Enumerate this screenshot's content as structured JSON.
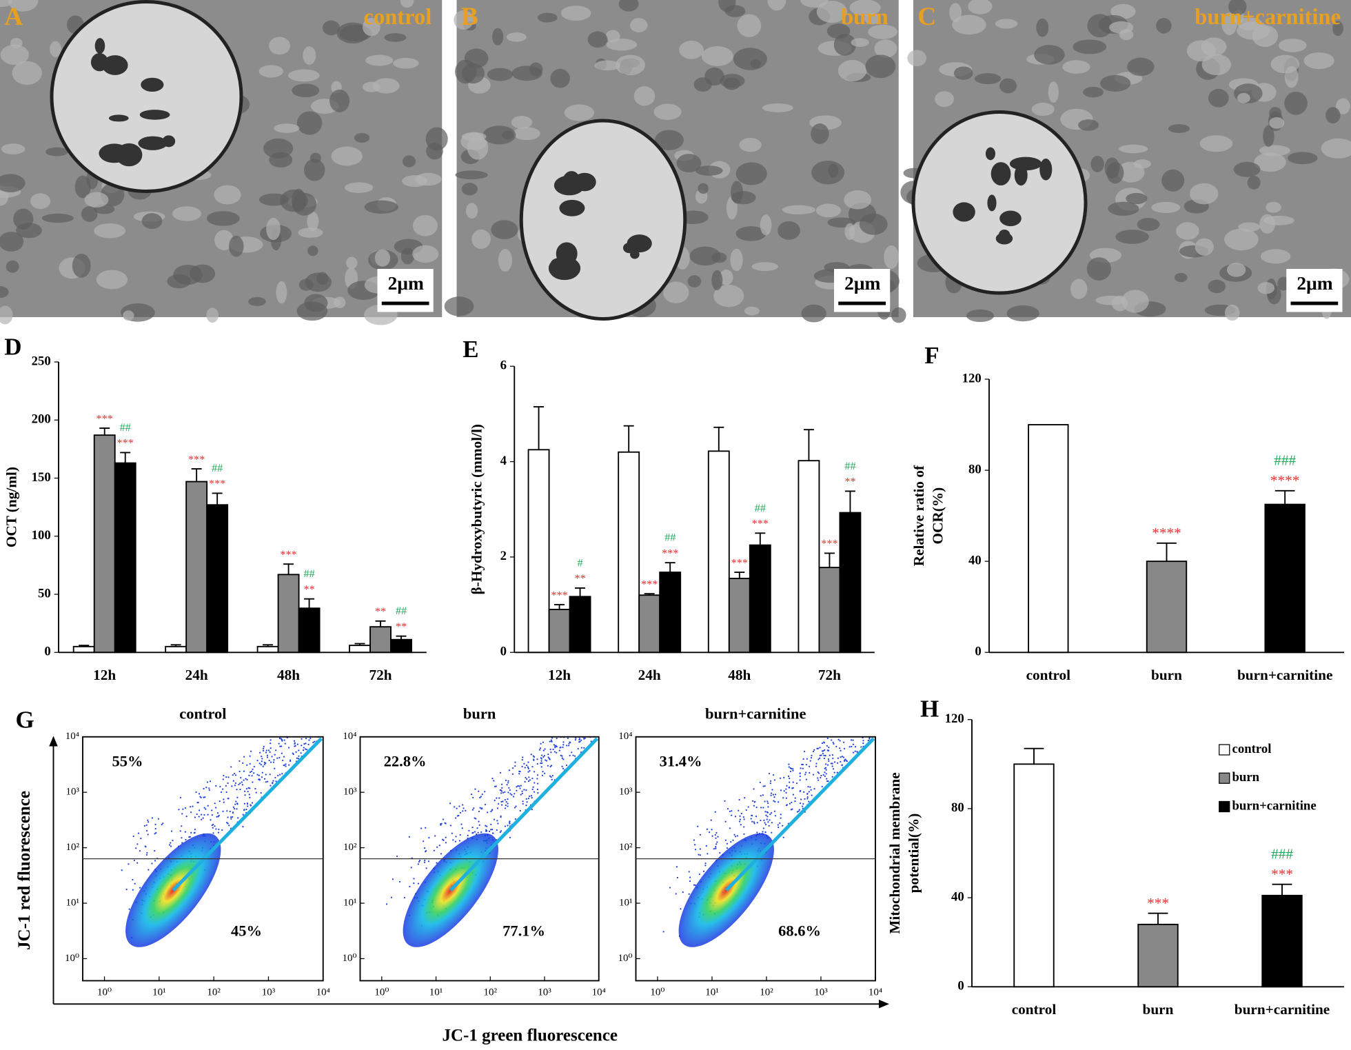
{
  "panels": [
    {
      "letter": "A",
      "label": "control",
      "scale": "2μm"
    },
    {
      "letter": "B",
      "label": "burn",
      "scale": "2μm"
    },
    {
      "letter": "C",
      "label": "burn+carnitine",
      "scale": "2μm"
    }
  ],
  "flow": {
    "letter": "G",
    "ylabel": "JC-1 red fluorescence",
    "xlabel": "JC-1 green fluorescence"
  },
  "chart_data": [
    {
      "type": "bar",
      "letter": "D",
      "ylabel": [
        "OCT (ng/ml)"
      ],
      "categories": [
        "12h",
        "24h",
        "48h",
        "72h"
      ],
      "ylim": [
        0,
        250
      ],
      "yticks": [
        0,
        50,
        100,
        150,
        200,
        250
      ],
      "sig_color": "#e8302e",
      "sig2_color": "#1ea85a",
      "series": [
        {
          "color": "#ffffff",
          "values": [
            5,
            5,
            5,
            6
          ],
          "errors": [
            1,
            1.5,
            1.5,
            1.5
          ]
        },
        {
          "color": "#888888",
          "values": [
            187,
            147,
            67,
            22
          ],
          "errors": [
            6,
            11,
            9,
            5
          ],
          "sig": [
            "***",
            "***",
            "***",
            "**"
          ]
        },
        {
          "color": "#000000",
          "values": [
            163,
            127,
            38,
            11
          ],
          "errors": [
            9,
            10,
            8,
            3
          ],
          "sig": [
            "***",
            "***",
            "**",
            "**"
          ],
          "sig2": [
            "##",
            "##",
            "##",
            "##"
          ]
        }
      ]
    },
    {
      "type": "bar",
      "letter": "E",
      "ylabel": [
        "β-Hydroxybutyric (mmol/l)"
      ],
      "categories": [
        "12h",
        "24h",
        "48h",
        "72h"
      ],
      "ylim": [
        0,
        6
      ],
      "yticks": [
        0,
        2,
        4,
        6
      ],
      "sig_color": "#e8302e",
      "sig2_color": "#1ea85a",
      "series": [
        {
          "color": "#ffffff",
          "values": [
            4.25,
            4.2,
            4.22,
            4.02
          ],
          "errors": [
            0.9,
            0.55,
            0.5,
            0.65
          ]
        },
        {
          "color": "#888888",
          "values": [
            0.9,
            1.2,
            1.55,
            1.78
          ],
          "errors": [
            0.1,
            0.03,
            0.13,
            0.3
          ],
          "sig": [
            "***",
            "***",
            "***",
            "***"
          ]
        },
        {
          "color": "#000000",
          "values": [
            1.17,
            1.68,
            2.25,
            2.93
          ],
          "errors": [
            0.18,
            0.2,
            0.25,
            0.45
          ],
          "sig": [
            "**",
            "***",
            "***",
            "**"
          ],
          "sig2": [
            "#",
            "##",
            "##",
            "##"
          ]
        }
      ]
    },
    {
      "type": "bar",
      "letter": "F",
      "ylabel": [
        "Relative ratio of",
        "OCR(%)"
      ],
      "categories": [
        "control",
        "burn",
        "burn+carnitine"
      ],
      "ylim": [
        0,
        120
      ],
      "yticks": [
        0,
        40,
        80,
        120
      ],
      "sig_color": "#e8302e",
      "sig2_color": "#1ea85a",
      "values": [
        100,
        40,
        65
      ],
      "errors": [
        null,
        8,
        6
      ],
      "colors": [
        "#ffffff",
        "#888888",
        "#000000"
      ],
      "sig": [
        null,
        "****",
        "****"
      ],
      "sig2": [
        null,
        null,
        "###"
      ]
    },
    {
      "type": "bar",
      "letter": "H",
      "ylabel": [
        "Mitochondrial membrane",
        "potential(%)"
      ],
      "categories": [
        "control",
        "burn",
        "burn+carnitine"
      ],
      "ylim": [
        0,
        120
      ],
      "yticks": [
        0,
        40,
        80,
        120
      ],
      "sig_color": "#e8302e",
      "sig2_color": "#1ea85a",
      "values": [
        100,
        28,
        41
      ],
      "errors": [
        7,
        5,
        5
      ],
      "colors": [
        "#ffffff",
        "#888888",
        "#000000"
      ],
      "sig": [
        null,
        "***",
        "***"
      ],
      "sig2": [
        null,
        null,
        "###"
      ],
      "legend": "upper right"
    },
    {
      "type": "scatter",
      "title": "control",
      "log": true,
      "xlim": [
        0.4,
        10000
      ],
      "ylim": [
        0.4,
        10000
      ],
      "xticks": [
        {
          "value": 1,
          "label": "10⁰"
        },
        {
          "value": 10,
          "label": "10¹"
        },
        {
          "value": 100,
          "label": "10²"
        },
        {
          "value": 1000,
          "label": "10³"
        },
        {
          "value": 10000,
          "label": "10⁴"
        }
      ],
      "yticks": [
        {
          "value": 1,
          "label": "10⁰"
        },
        {
          "value": 10,
          "label": "10¹"
        },
        {
          "value": 100,
          "label": "10²"
        },
        {
          "value": 1000,
          "label": "10³"
        },
        {
          "value": 10000,
          "label": "10⁴"
        }
      ],
      "annotations": [
        "55%",
        "45%"
      ]
    },
    {
      "type": "scatter",
      "title": "burn",
      "log": true,
      "xlim": [
        0.4,
        10000
      ],
      "ylim": [
        0.4,
        10000
      ],
      "xticks": [
        {
          "value": 1,
          "label": "10⁰"
        },
        {
          "value": 10,
          "label": "10¹"
        },
        {
          "value": 100,
          "label": "10²"
        },
        {
          "value": 1000,
          "label": "10³"
        },
        {
          "value": 10000,
          "label": "10⁴"
        }
      ],
      "yticks": [
        {
          "value": 1,
          "label": "10⁰"
        },
        {
          "value": 10,
          "label": "10¹"
        },
        {
          "value": 100,
          "label": "10²"
        },
        {
          "value": 1000,
          "label": "10³"
        },
        {
          "value": 10000,
          "label": "10⁴"
        }
      ],
      "annotations": [
        "22.8%",
        "77.1%"
      ]
    },
    {
      "type": "scatter",
      "title": "burn+carnitine",
      "log": true,
      "xlim": [
        0.4,
        10000
      ],
      "ylim": [
        0.4,
        10000
      ],
      "xticks": [
        {
          "value": 1,
          "label": "10⁰"
        },
        {
          "value": 10,
          "label": "10¹"
        },
        {
          "value": 100,
          "label": "10²"
        },
        {
          "value": 1000,
          "label": "10³"
        },
        {
          "value": 10000,
          "label": "10⁴"
        }
      ],
      "yticks": [
        {
          "value": 1,
          "label": "10⁰"
        },
        {
          "value": 10,
          "label": "10¹"
        },
        {
          "value": 100,
          "label": "10²"
        },
        {
          "value": 1000,
          "label": "10³"
        },
        {
          "value": 10000,
          "label": "10⁴"
        }
      ],
      "annotations": [
        "31.4%",
        "68.6%"
      ]
    }
  ]
}
